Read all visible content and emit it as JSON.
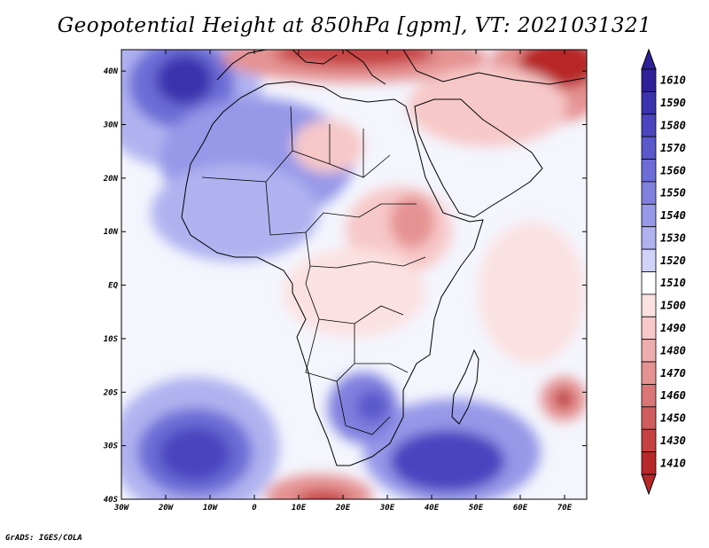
{
  "title": "Geopotential Height at 850hPa [gpm], VT: 2021031321",
  "credit": "GrADS: IGES/COLA",
  "map": {
    "lon_range": [
      -30,
      75
    ],
    "lat_range": [
      -40,
      44
    ],
    "lon_ticks": [
      {
        "lon": -30,
        "label": "30W"
      },
      {
        "lon": -20,
        "label": "20W"
      },
      {
        "lon": -10,
        "label": "10W"
      },
      {
        "lon": 0,
        "label": "0"
      },
      {
        "lon": 10,
        "label": "10E"
      },
      {
        "lon": 20,
        "label": "20E"
      },
      {
        "lon": 30,
        "label": "30E"
      },
      {
        "lon": 40,
        "label": "40E"
      },
      {
        "lon": 50,
        "label": "50E"
      },
      {
        "lon": 60,
        "label": "60E"
      },
      {
        "lon": 70,
        "label": "70E"
      }
    ],
    "lat_ticks": [
      {
        "lat": 40,
        "label": "40N"
      },
      {
        "lat": 30,
        "label": "30N"
      },
      {
        "lat": 20,
        "label": "20N"
      },
      {
        "lat": 10,
        "label": "10N"
      },
      {
        "lat": 0,
        "label": "EQ"
      },
      {
        "lat": -10,
        "label": "10S"
      },
      {
        "lat": -20,
        "label": "20S"
      },
      {
        "lat": -30,
        "label": "30S"
      },
      {
        "lat": -40,
        "label": "40S"
      }
    ]
  },
  "colorbar": {
    "levels": [
      {
        "label": "1610",
        "color": "#2e2098"
      },
      {
        "label": "1590",
        "color": "#3a33ad"
      },
      {
        "label": "1580",
        "color": "#4a45bf"
      },
      {
        "label": "1570",
        "color": "#5a59cb"
      },
      {
        "label": "1560",
        "color": "#6c6dd6"
      },
      {
        "label": "1550",
        "color": "#8080df"
      },
      {
        "label": "1540",
        "color": "#9698e8"
      },
      {
        "label": "1530",
        "color": "#b0b2f0"
      },
      {
        "label": "1520",
        "color": "#d0d2f8"
      },
      {
        "label": "1510",
        "color": "#ffffff"
      },
      {
        "label": "1500",
        "color": "#fbe1e1"
      },
      {
        "label": "1490",
        "color": "#f7c8c8"
      },
      {
        "label": "1480",
        "color": "#eeadad"
      },
      {
        "label": "1470",
        "color": "#e59292"
      },
      {
        "label": "1460",
        "color": "#db7676"
      },
      {
        "label": "1450",
        "color": "#d05c5c"
      },
      {
        "label": "1430",
        "color": "#c64242"
      },
      {
        "label": "1410",
        "color": "#b82828"
      }
    ]
  }
}
